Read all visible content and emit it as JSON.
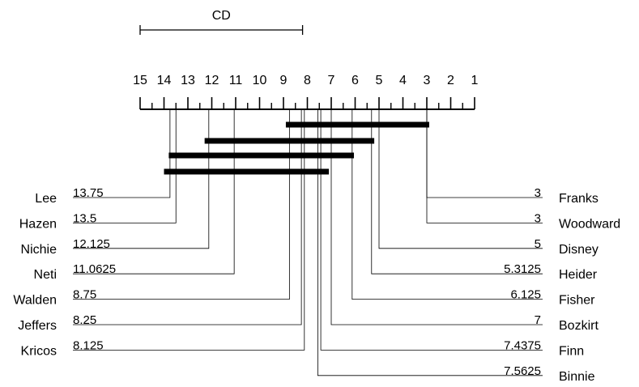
{
  "cd": {
    "label": "CD",
    "rank_from": 15,
    "rank_to": 8.2
  },
  "axis": {
    "min": 1,
    "max": 15,
    "ticks": [
      "15",
      "14",
      "13",
      "12",
      "11",
      "10",
      "9",
      "8",
      "7",
      "6",
      "5",
      "4",
      "3",
      "2",
      "1"
    ]
  },
  "left_methods": [
    {
      "name": "Lee",
      "value": "13.75",
      "rank": 13.75
    },
    {
      "name": "Hazen",
      "value": "13.5",
      "rank": 13.5
    },
    {
      "name": "Nichie",
      "value": "12.125",
      "rank": 12.125
    },
    {
      "name": "Neti",
      "value": "11.0625",
      "rank": 11.0625
    },
    {
      "name": "Walden",
      "value": "8.75",
      "rank": 8.75
    },
    {
      "name": "Jeffers",
      "value": "8.25",
      "rank": 8.25
    },
    {
      "name": "Kricos",
      "value": "8.125",
      "rank": 8.125
    }
  ],
  "right_methods": [
    {
      "name": "Franks",
      "value": "3",
      "rank": 3
    },
    {
      "name": "Woodward",
      "value": "3",
      "rank": 3
    },
    {
      "name": "Disney",
      "value": "5",
      "rank": 5
    },
    {
      "name": "Heider",
      "value": "5.3125",
      "rank": 5.3125
    },
    {
      "name": "Fisher",
      "value": "6.125",
      "rank": 6.125
    },
    {
      "name": "Bozkirt",
      "value": "7",
      "rank": 7
    },
    {
      "name": "Finn",
      "value": "7.4375",
      "rank": 7.4375
    },
    {
      "name": "Binnie",
      "value": "7.5625",
      "rank": 7.5625
    }
  ],
  "cliques": [
    {
      "from": 8.9,
      "to": 2.9
    },
    {
      "from": 12.3,
      "to": 5.2
    },
    {
      "from": 13.8,
      "to": 6.05
    },
    {
      "from": 14,
      "to": 7.1
    }
  ]
}
